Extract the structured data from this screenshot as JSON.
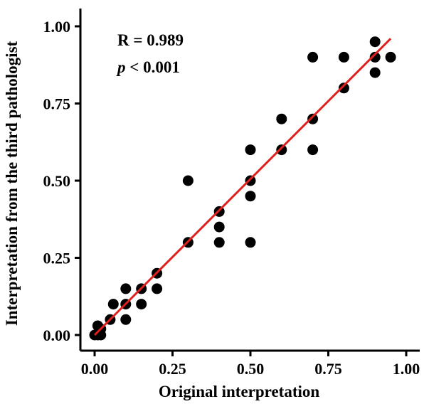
{
  "chart_data": {
    "type": "scatter",
    "title": "",
    "xlabel": "Original interpretation",
    "ylabel": "Interpretation from the third pathologist",
    "xlim": [
      -0.06,
      1.02
    ],
    "ylim": [
      -0.06,
      1.06
    ],
    "x_ticks": [
      0.0,
      0.25,
      0.5,
      0.75,
      1.0
    ],
    "y_ticks": [
      0.0,
      0.25,
      0.5,
      0.75,
      1.0
    ],
    "x_tick_labels": [
      "0.00",
      "0.25",
      "0.50",
      "0.75",
      "1.00"
    ],
    "y_tick_labels": [
      "0.00",
      "0.25",
      "0.50",
      "0.75",
      "1.00"
    ],
    "grid": false,
    "legend": "none",
    "annotations": {
      "r_text": "R = 0.989",
      "p_symbol": "p",
      "p_rest": " < 0.001"
    },
    "fit_line": {
      "color": "#e0201b",
      "x": [
        0.0,
        0.95
      ],
      "y": [
        0.0,
        0.96
      ]
    },
    "point_color": "#000000",
    "points": [
      {
        "x": 0.0,
        "y": 0.0
      },
      {
        "x": 0.01,
        "y": 0.0
      },
      {
        "x": 0.02,
        "y": 0.0
      },
      {
        "x": 0.01,
        "y": 0.03
      },
      {
        "x": 0.02,
        "y": 0.02
      },
      {
        "x": 0.05,
        "y": 0.05
      },
      {
        "x": 0.06,
        "y": 0.1
      },
      {
        "x": 0.1,
        "y": 0.05
      },
      {
        "x": 0.1,
        "y": 0.1
      },
      {
        "x": 0.1,
        "y": 0.15
      },
      {
        "x": 0.15,
        "y": 0.1
      },
      {
        "x": 0.15,
        "y": 0.15
      },
      {
        "x": 0.2,
        "y": 0.15
      },
      {
        "x": 0.2,
        "y": 0.2
      },
      {
        "x": 0.3,
        "y": 0.3
      },
      {
        "x": 0.3,
        "y": 0.5
      },
      {
        "x": 0.4,
        "y": 0.3
      },
      {
        "x": 0.4,
        "y": 0.35
      },
      {
        "x": 0.4,
        "y": 0.4
      },
      {
        "x": 0.5,
        "y": 0.3
      },
      {
        "x": 0.5,
        "y": 0.45
      },
      {
        "x": 0.5,
        "y": 0.5
      },
      {
        "x": 0.5,
        "y": 0.6
      },
      {
        "x": 0.6,
        "y": 0.6
      },
      {
        "x": 0.6,
        "y": 0.7
      },
      {
        "x": 0.7,
        "y": 0.6
      },
      {
        "x": 0.7,
        "y": 0.7
      },
      {
        "x": 0.7,
        "y": 0.9
      },
      {
        "x": 0.8,
        "y": 0.8
      },
      {
        "x": 0.8,
        "y": 0.9
      },
      {
        "x": 0.9,
        "y": 0.85
      },
      {
        "x": 0.9,
        "y": 0.9
      },
      {
        "x": 0.9,
        "y": 0.95
      },
      {
        "x": 0.95,
        "y": 0.9
      }
    ]
  }
}
